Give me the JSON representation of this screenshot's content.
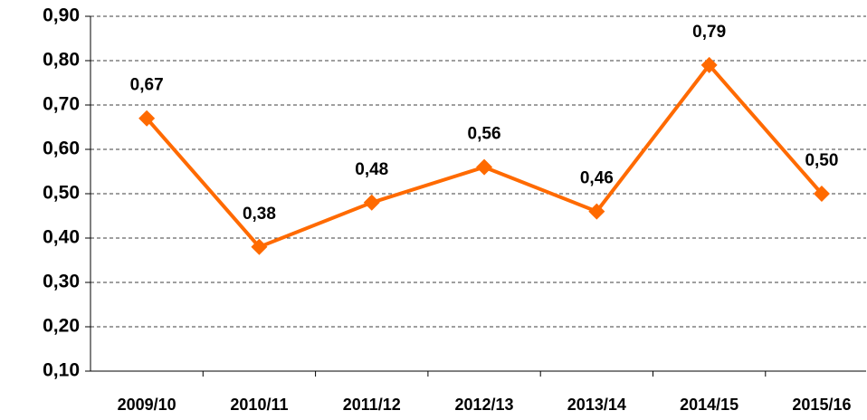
{
  "chart_data": {
    "type": "line",
    "categories": [
      "2009/10",
      "2010/11",
      "2011/12",
      "2012/13",
      "2013/14",
      "2014/15",
      "2015/16"
    ],
    "series": [
      {
        "color": "#ff6a00",
        "values": [
          0.67,
          0.38,
          0.48,
          0.56,
          0.46,
          0.79,
          0.5
        ],
        "value_labels": [
          "0,67",
          "0,38",
          "0,48",
          "0,56",
          "0,46",
          "0,79",
          "0,50"
        ]
      }
    ],
    "ylim": [
      0.1,
      0.9
    ],
    "yticks": [
      {
        "value": 0.1,
        "label": "0,10"
      },
      {
        "value": 0.2,
        "label": "0,20"
      },
      {
        "value": 0.3,
        "label": "0,30"
      },
      {
        "value": 0.4,
        "label": "0,40"
      },
      {
        "value": 0.5,
        "label": "0,50"
      },
      {
        "value": 0.6,
        "label": "0,60"
      },
      {
        "value": 0.7,
        "label": "0,70"
      },
      {
        "value": 0.8,
        "label": "0,80"
      },
      {
        "value": 0.9,
        "label": "0,90"
      }
    ],
    "grid": true
  }
}
